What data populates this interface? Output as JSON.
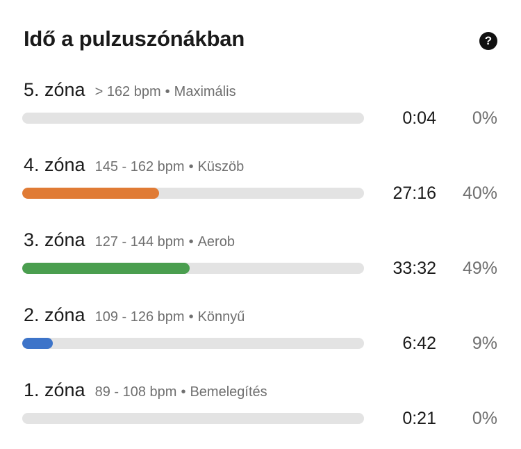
{
  "header": {
    "title": "Idő a pulzuszónákban",
    "help_icon": "question-mark-icon"
  },
  "zones": [
    {
      "name": "5. zóna",
      "range": "> 162 bpm",
      "separator": "•",
      "desc": "Maximális",
      "time": "0:04",
      "percent": "0%",
      "fill_fraction": 0.0,
      "color": "#e07b35"
    },
    {
      "name": "4. zóna",
      "range": "145 - 162 bpm",
      "separator": "•",
      "desc": "Küszöb",
      "time": "27:16",
      "percent": "40%",
      "fill_fraction": 0.4,
      "color": "#e07b35"
    },
    {
      "name": "3. zóna",
      "range": "127 - 144 bpm",
      "separator": "•",
      "desc": "Aerob",
      "time": "33:32",
      "percent": "49%",
      "fill_fraction": 0.49,
      "color": "#4a9e4f"
    },
    {
      "name": "2. zóna",
      "range": "109 - 126 bpm",
      "separator": "•",
      "desc": "Könnyű",
      "time": "6:42",
      "percent": "9%",
      "fill_fraction": 0.09,
      "color": "#3d74c9"
    },
    {
      "name": "1. zóna",
      "range": "89 - 108 bpm",
      "separator": "•",
      "desc": "Bemelegítés",
      "time": "0:21",
      "percent": "0%",
      "fill_fraction": 0.0,
      "color": "#9a9a9a"
    }
  ],
  "colors": {
    "track": "#e3e3e3",
    "primary_text": "#1a1a1a",
    "secondary_text": "#6f6f6f"
  }
}
